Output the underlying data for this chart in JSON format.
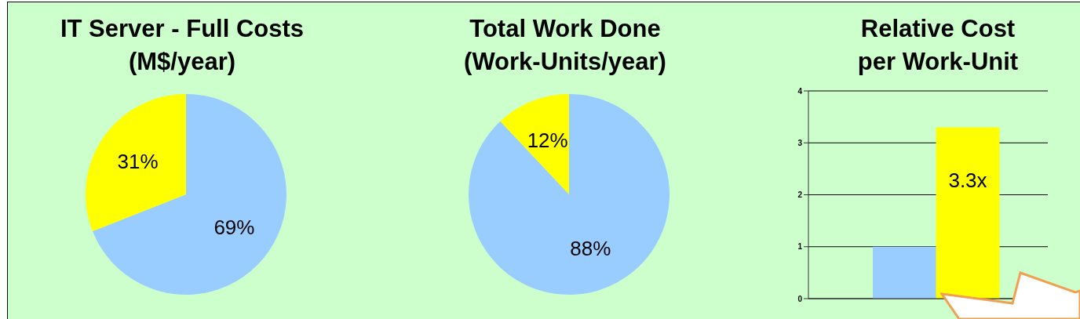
{
  "chart_data": [
    {
      "type": "pie",
      "title": "IT Server - Full Costs\n(M$/year)",
      "categories": [
        null,
        null
      ],
      "values": [
        69,
        31
      ],
      "colors": [
        "#99ccff",
        "#ffff00"
      ],
      "value_labels": [
        "69%",
        "31%"
      ]
    },
    {
      "type": "pie",
      "title": "Total Work Done\n(Work-Units/year)",
      "categories": [
        null,
        null
      ],
      "values": [
        88,
        12
      ],
      "colors": [
        "#99ccff",
        "#ffff00"
      ],
      "value_labels": [
        "88%",
        "12%"
      ]
    },
    {
      "type": "bar",
      "title": "Relative Cost\nper Work-Unit",
      "categories": [
        null,
        null
      ],
      "values": [
        1,
        3.3
      ],
      "colors": [
        "#99ccff",
        "#ffff00"
      ],
      "value_labels": [
        null,
        "3.3x"
      ],
      "ylim": [
        0,
        4
      ],
      "yticks": [
        0,
        1,
        2,
        3,
        4
      ],
      "grid": "y"
    }
  ]
}
